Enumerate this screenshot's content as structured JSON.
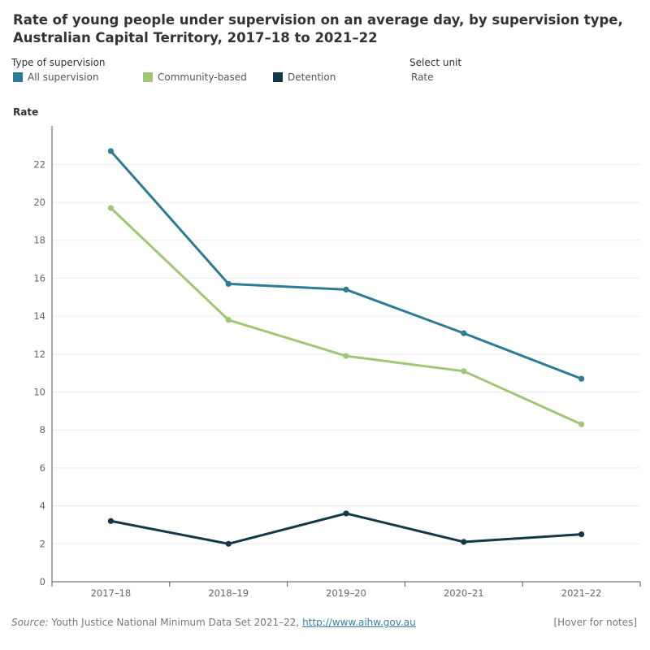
{
  "title": "Rate of young people under supervision on an average day, by supervision type, Australian Capital Territory, 2017–18 to 2021–22",
  "legend": {
    "title": "Type of supervision",
    "items": [
      {
        "label": "All supervision",
        "color": "#2e7b96"
      },
      {
        "label": "Community-based",
        "color": "#9fc775"
      },
      {
        "label": "Detention",
        "color": "#14384a"
      }
    ]
  },
  "unit": {
    "title": "Select unit",
    "value": "Rate"
  },
  "chart_data": {
    "type": "line",
    "ylabel": "Rate",
    "xlabel": "",
    "categories": [
      "2017–18",
      "2018–19",
      "2019–20",
      "2020–21",
      "2021–22"
    ],
    "ylim": [
      0,
      24
    ],
    "yticks": [
      0,
      2,
      4,
      6,
      8,
      10,
      12,
      14,
      16,
      18,
      20,
      22
    ],
    "grid": true,
    "series": [
      {
        "name": "All supervision",
        "color": "#2e7b96",
        "values": [
          22.7,
          15.7,
          15.4,
          13.1,
          10.7
        ]
      },
      {
        "name": "Community-based",
        "color": "#9fc775",
        "values": [
          19.7,
          13.8,
          11.9,
          11.1,
          8.3
        ]
      },
      {
        "name": "Detention",
        "color": "#14384a",
        "values": [
          3.2,
          2.0,
          3.6,
          2.1,
          2.5
        ]
      }
    ]
  },
  "footer": {
    "source_label": "Source:",
    "source_text": " Youth Justice National Minimum Data Set 2021–22, ",
    "link": "http://www.aihw.gov.au",
    "notes": "[Hover for notes]"
  }
}
